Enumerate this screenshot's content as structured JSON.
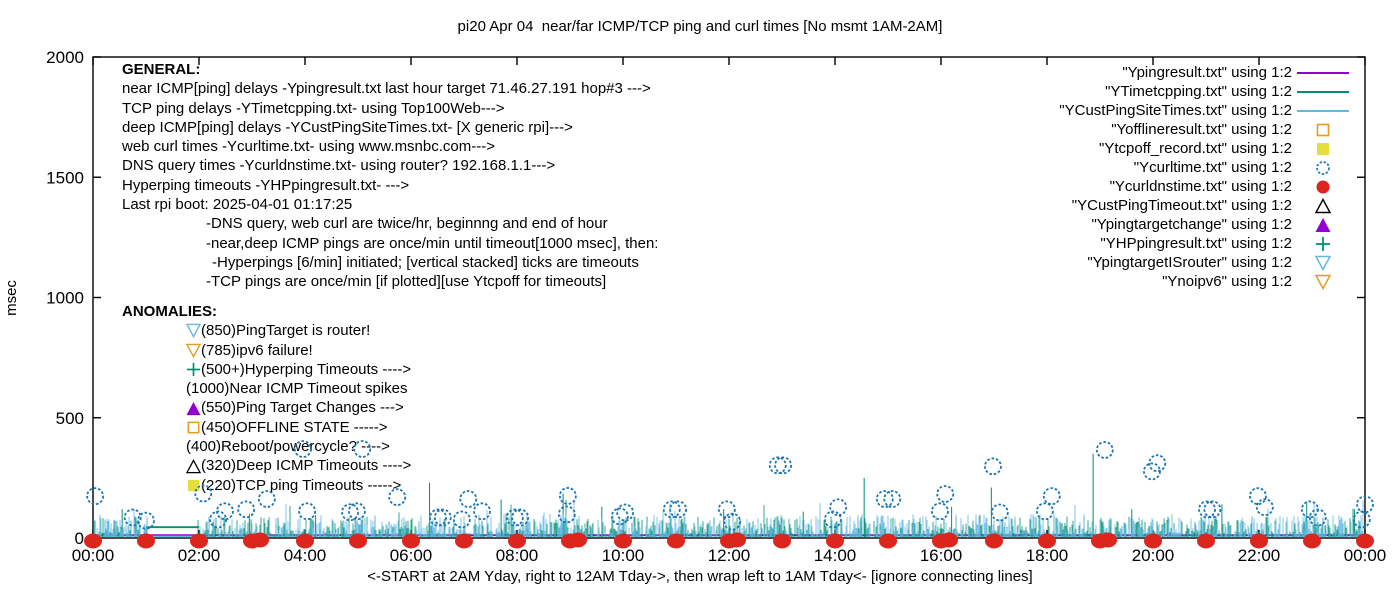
{
  "title": "pi20 Apr 04  near/far ICMP/TCP ping and curl times [No msmt 1AM-2AM]",
  "footer_note": "<-START at 2AM Yday, right to 12AM Tday->, then wrap left to 1AM Tday<- [ignore connecting lines]",
  "colors": {
    "purple": "#9400D3",
    "teal": "#008F72",
    "lightblue": "#63B8E4",
    "orange": "#E59B20",
    "yellow": "#E6DE3A",
    "blue": "#1B77B4",
    "red": "#DB251D",
    "black": "#000000"
  },
  "general": {
    "heading": "GENERAL:",
    "lines": [
      {
        "text": "near ICMP[ping] delays -Ypingresult.txt last hour target 71.46.27.191 hop#3 --->",
        "indent": 0
      },
      {
        "text": "TCP ping delays -YTimetcpping.txt- using Top100Web--->",
        "indent": 0
      },
      {
        "text": "deep ICMP[ping] delays -YCustPingSiteTimes.txt- [X generic rpi]--->",
        "indent": 0
      },
      {
        "text": "web curl times -Ycurltime.txt- using www.msnbc.com--->",
        "indent": 0
      },
      {
        "text": "DNS query times -Ycurldnstime.txt- using router? 192.168.1.1--->",
        "indent": 0
      },
      {
        "text": "Hyperping timeouts -YHPpingresult.txt- --->",
        "indent": 0
      },
      {
        "text": "Last rpi boot: 2025-04-01 01:17:25",
        "indent": 0
      },
      {
        "text": "-DNS query, web curl are twice/hr, beginnng and end of hour",
        "indent": 84
      },
      {
        "text": "-near,deep ICMP pings are once/min until timeout[1000 msec], then:",
        "indent": 84
      },
      {
        "text": "-Hyperpings [6/min] initiated; [vertical stacked] ticks are timeouts",
        "indent": 90
      },
      {
        "text": "-TCP pings are once/min [if plotted][use Ytcpoff for timeouts]",
        "indent": 84
      }
    ]
  },
  "anomalies": {
    "heading": "ANOMALIES:",
    "items": [
      {
        "marker": "triangle-down-open",
        "color": "#63B8E4",
        "text": "(850)PingTarget is router!"
      },
      {
        "marker": "triangle-down-open",
        "color": "#E59B20",
        "text": "(785)ipv6 failure!"
      },
      {
        "marker": "plus",
        "color": "#008F72",
        "text": "(500+)Hyperping Timeouts ---->"
      },
      {
        "marker": "none",
        "color": "#000000",
        "text": "(1000)Near ICMP Timeout spikes"
      },
      {
        "marker": "triangle-up-filled",
        "color": "#9400D3",
        "text": "(550)Ping Target Changes --->"
      },
      {
        "marker": "square-open",
        "color": "#E59B20",
        "text": "(450)OFFLINE STATE ----->"
      },
      {
        "marker": "none",
        "color": "#000000",
        "text": "(400)Reboot/powercycle? ---->"
      },
      {
        "marker": "triangle-up-open",
        "color": "#000000",
        "text": "(320)Deep ICMP Timeouts ---->"
      },
      {
        "marker": "square-filled",
        "color": "#E6DE3A",
        "text": "(220)TCP ping Timeouts ----->"
      }
    ]
  },
  "legend": {
    "entries": [
      {
        "label": "\"Ypingresult.txt\" using 1:2",
        "glyph": "line",
        "color": "#9400D3"
      },
      {
        "label": "\"YTimetcpping.txt\" using 1:2",
        "glyph": "line",
        "color": "#008F72"
      },
      {
        "label": "\"YCustPingSiteTimes.txt\" using 1:2",
        "glyph": "line",
        "color": "#63B8E4"
      },
      {
        "label": "\"Yofflineresult.txt\" using 1:2",
        "glyph": "square-open",
        "color": "#E59B20"
      },
      {
        "label": "\"Ytcpoff_record.txt\" using 1:2",
        "glyph": "square-filled",
        "color": "#E6DE3A"
      },
      {
        "label": "\"Ycurltime.txt\" using 1:2",
        "glyph": "circle-open",
        "color": "#1B77B4"
      },
      {
        "label": "\"Ycurldnstime.txt\" using 1:2",
        "glyph": "circle-filled",
        "color": "#DB251D"
      },
      {
        "label": "\"YCustPingTimeout.txt\" using 1:2",
        "glyph": "triangle-up-open",
        "color": "#000000"
      },
      {
        "label": "\"Ypingtargetchange\" using 1:2",
        "glyph": "triangle-up-filled",
        "color": "#9400D3"
      },
      {
        "label": "\"YHPpingresult.txt\" using 1:2",
        "glyph": "plus",
        "color": "#008F72"
      },
      {
        "label": "\"YpingtargetISrouter\" using 1:2",
        "glyph": "triangle-down-open",
        "color": "#63B8E4"
      },
      {
        "label": "\"Ynoipv6\" using 1:2",
        "glyph": "triangle-down-open",
        "color": "#E59B20"
      }
    ]
  },
  "chart_data": {
    "type": "line",
    "title": "pi20 Apr 04  near/far ICMP/TCP ping and curl times [No msmt 1AM-2AM]",
    "ylabel": "msec",
    "xlabel": "<-START at 2AM Yday, right to 12AM Tday->, then wrap left to 1AM Tday<- [ignore connecting lines]",
    "ylim": [
      0,
      2000
    ],
    "yticks": [
      0,
      500,
      1000,
      1500,
      2000
    ],
    "xlim_hours": [
      0,
      24
    ],
    "xticks_hours": [
      0,
      2,
      4,
      6,
      8,
      10,
      12,
      14,
      16,
      18,
      20,
      22,
      24
    ],
    "xtick_labels": [
      "00:00",
      "02:00",
      "04:00",
      "06:00",
      "08:00",
      "10:00",
      "12:00",
      "14:00",
      "16:00",
      "18:00",
      "20:00",
      "22:00",
      "00:00"
    ],
    "grid": false,
    "legend_position": "top-right",
    "no_measurement_gap_hours": [
      1,
      2
    ],
    "series": [
      {
        "name": "Ypingresult.txt",
        "style": "line",
        "color": "#9400D3",
        "behavior": "flat-line",
        "value_msec": 12
      },
      {
        "name": "YTimetcpping.txt",
        "style": "line",
        "color": "#008F72",
        "behavior": "noise-band",
        "band_msec": [
          3,
          90
        ],
        "gap_bridge_msec": 45,
        "spikes": [
          [
            0.55,
            120
          ],
          [
            2.95,
            100
          ],
          [
            4.2,
            95
          ],
          [
            6.35,
            230
          ],
          [
            7.7,
            160
          ],
          [
            8.87,
            185
          ],
          [
            9.6,
            130
          ],
          [
            11.9,
            120
          ],
          [
            13.4,
            110
          ],
          [
            14.55,
            250
          ],
          [
            16.2,
            130
          ],
          [
            16.95,
            210
          ],
          [
            18.87,
            350
          ],
          [
            19.6,
            120
          ],
          [
            21.3,
            140
          ],
          [
            22.9,
            150
          ],
          [
            23.8,
            120
          ]
        ]
      },
      {
        "name": "YCustPingSiteTimes.txt",
        "style": "line",
        "color": "#63B8E4",
        "behavior": "noise-band",
        "band_msec": [
          3,
          100
        ],
        "gap_bridge_msec": 6,
        "spikes": []
      },
      {
        "name": "Yofflineresult.txt",
        "style": "scatter",
        "marker": "square-open",
        "color": "#E59B20",
        "points": []
      },
      {
        "name": "Ytcpoff_record.txt",
        "style": "scatter",
        "marker": "square-filled",
        "color": "#E6DE3A",
        "points": []
      },
      {
        "name": "Ycurltime.txt",
        "style": "scatter",
        "marker": "circle-open",
        "color": "#1B77B4",
        "points": [
          [
            0.04,
            174
          ],
          [
            0.75,
            85
          ],
          [
            1.0,
            72
          ],
          [
            2.08,
            185
          ],
          [
            2.36,
            77
          ],
          [
            2.49,
            111
          ],
          [
            2.89,
            119
          ],
          [
            3.28,
            162
          ],
          [
            3.96,
            370
          ],
          [
            4.04,
            111
          ],
          [
            4.85,
            107
          ],
          [
            4.98,
            111
          ],
          [
            5.08,
            370
          ],
          [
            5.74,
            170
          ],
          [
            6.51,
            85
          ],
          [
            6.6,
            85
          ],
          [
            6.96,
            77
          ],
          [
            7.08,
            162
          ],
          [
            7.34,
            111
          ],
          [
            7.96,
            85
          ],
          [
            8.06,
            85
          ],
          [
            8.94,
            98
          ],
          [
            8.96,
            175
          ],
          [
            9.94,
            90
          ],
          [
            10.04,
            106
          ],
          [
            10.92,
            119
          ],
          [
            11.04,
            119
          ],
          [
            11.96,
            119
          ],
          [
            12.06,
            68
          ],
          [
            12.92,
            302
          ],
          [
            13.02,
            302
          ],
          [
            13.96,
            77
          ],
          [
            14.06,
            128
          ],
          [
            14.94,
            162
          ],
          [
            15.08,
            162
          ],
          [
            15.98,
            111
          ],
          [
            16.08,
            183
          ],
          [
            16.98,
            298
          ],
          [
            17.11,
            106
          ],
          [
            17.96,
            111
          ],
          [
            18.09,
            174
          ],
          [
            19.09,
            366
          ],
          [
            19.98,
            277
          ],
          [
            20.08,
            311
          ],
          [
            21.02,
            119
          ],
          [
            21.12,
            119
          ],
          [
            21.98,
            174
          ],
          [
            22.11,
            128
          ],
          [
            22.96,
            119
          ],
          [
            23.11,
            85
          ],
          [
            23.94,
            77
          ],
          [
            24.0,
            140
          ]
        ]
      },
      {
        "name": "Ycurldnstime.txt",
        "style": "scatter",
        "marker": "circle-filled",
        "color": "#DB251D",
        "points": [
          [
            0,
            0
          ],
          [
            1,
            0
          ],
          [
            2,
            0
          ],
          [
            3,
            0
          ],
          [
            4,
            0
          ],
          [
            5,
            0
          ],
          [
            6,
            0
          ],
          [
            7,
            0
          ],
          [
            8,
            0
          ],
          [
            9,
            0
          ],
          [
            10,
            0
          ],
          [
            11,
            0
          ],
          [
            12,
            0
          ],
          [
            13,
            0
          ],
          [
            14,
            0
          ],
          [
            15,
            0
          ],
          [
            16,
            0
          ],
          [
            17,
            0
          ],
          [
            18,
            0
          ],
          [
            19,
            0
          ],
          [
            20,
            0
          ],
          [
            21,
            0
          ],
          [
            22,
            0
          ],
          [
            23,
            0
          ],
          [
            24,
            0
          ]
        ],
        "double_hours": [
          3,
          9,
          12,
          16,
          19
        ]
      },
      {
        "name": "YCustPingTimeout.txt",
        "style": "scatter",
        "marker": "triangle-up-open",
        "color": "#000000",
        "points": []
      },
      {
        "name": "Ypingtargetchange",
        "style": "scatter",
        "marker": "triangle-up-filled",
        "color": "#9400D3",
        "points": []
      },
      {
        "name": "YHPpingresult.txt",
        "style": "scatter",
        "marker": "plus",
        "color": "#008F72",
        "points": []
      },
      {
        "name": "YpingtargetISrouter",
        "style": "scatter",
        "marker": "triangle-down-open",
        "color": "#63B8E4",
        "points": []
      },
      {
        "name": "Ynoipv6",
        "style": "scatter",
        "marker": "triangle-down-open",
        "color": "#E59B20",
        "points": []
      }
    ]
  }
}
